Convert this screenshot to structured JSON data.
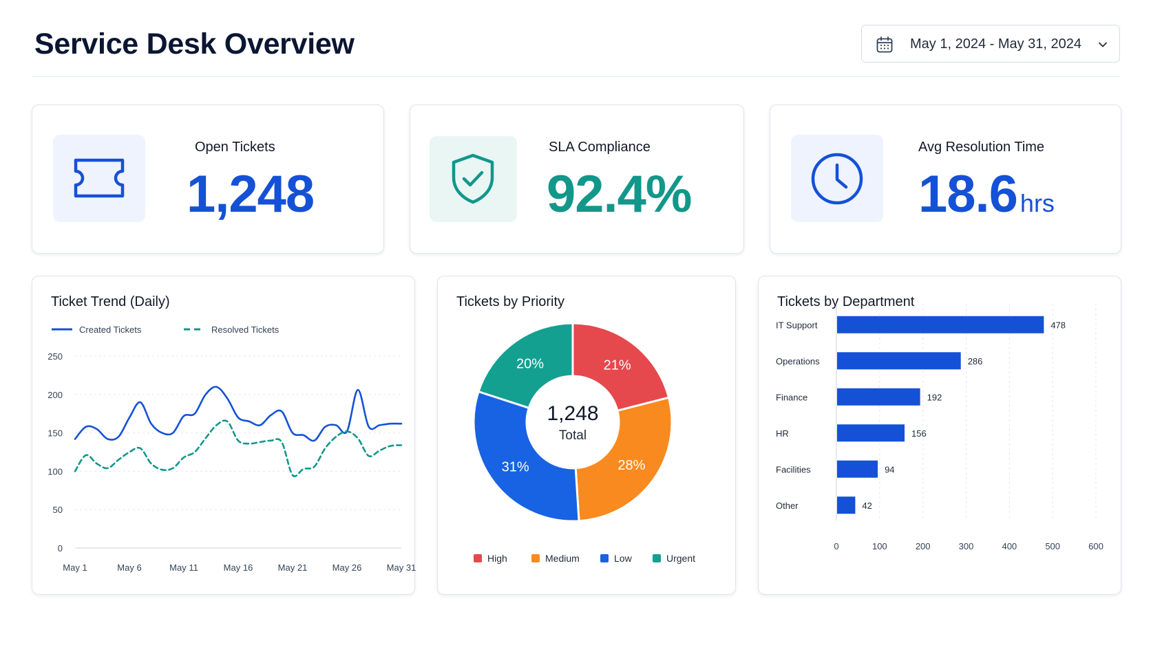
{
  "header": {
    "title": "Service Desk Overview",
    "date_range": "May 1, 2024 - May 31, 2024"
  },
  "icons": {
    "calendar": "calendar-icon",
    "dropdown": "chevron-down-icon",
    "ticket": "ticket-icon",
    "sla": "shield-check-icon",
    "resolution": "clock-icon"
  },
  "colors": {
    "blue": "#1551d6",
    "teal": "#12978a",
    "red": "#e5484d",
    "orange": "#f98a1f",
    "low_blue": "#1763e3",
    "urgent_teal": "#13a090"
  },
  "kpis": {
    "open_tickets": {
      "label": "Open Tickets",
      "value": "1,248"
    },
    "sla_compliance": {
      "label": "SLA Compliance",
      "value": "92.4%"
    },
    "avg_resolution": {
      "label": "Avg Resolution Time",
      "value": "18.6",
      "unit": "hrs"
    }
  },
  "trend_panel": {
    "title": "Ticket Trend (Daily)"
  },
  "priority_panel": {
    "title": "Tickets by Priority"
  },
  "department_panel": {
    "title": "Tickets by Department"
  },
  "chart_data": [
    {
      "type": "line",
      "title": "Ticket Trend (Daily)",
      "x": [
        "May 1",
        "May 2",
        "May 3",
        "May 4",
        "May 5",
        "May 6",
        "May 7",
        "May 8",
        "May 9",
        "May 10",
        "May 11",
        "May 12",
        "May 13",
        "May 14",
        "May 15",
        "May 16",
        "May 17",
        "May 18",
        "May 19",
        "May 20",
        "May 21",
        "May 22",
        "May 23",
        "May 24",
        "May 25",
        "May 26",
        "May 27",
        "May 28",
        "May 29",
        "May 30",
        "May 31"
      ],
      "x_ticks": [
        "May 1",
        "May 6",
        "May 11",
        "May 16",
        "May 21",
        "May 26",
        "May 31"
      ],
      "ylim": [
        0,
        250
      ],
      "y_ticks": [
        0,
        50,
        100,
        150,
        200,
        250
      ],
      "grid": true,
      "legend": "top-left",
      "series": [
        {
          "name": "Created Tickets",
          "style": "solid",
          "color": "#1551d6",
          "values": [
            142,
            158,
            155,
            142,
            145,
            170,
            190,
            162,
            150,
            150,
            172,
            175,
            200,
            210,
            195,
            170,
            165,
            160,
            173,
            178,
            150,
            147,
            140,
            158,
            160,
            152,
            206,
            158,
            160,
            162,
            162
          ]
        },
        {
          "name": "Resolved Tickets",
          "style": "dashed",
          "color": "#12978a",
          "values": [
            100,
            121,
            110,
            104,
            115,
            125,
            130,
            110,
            102,
            104,
            118,
            125,
            143,
            160,
            165,
            140,
            136,
            138,
            140,
            138,
            95,
            103,
            106,
            130,
            145,
            152,
            143,
            120,
            127,
            133,
            134
          ]
        }
      ]
    },
    {
      "type": "pie",
      "title": "Tickets by Priority",
      "center_value": "1,248",
      "center_label": "Total",
      "legend": "bottom",
      "slices": [
        {
          "name": "High",
          "value": 21,
          "label": "21%",
          "color": "#e5484d"
        },
        {
          "name": "Medium",
          "value": 28,
          "label": "28%",
          "color": "#f98a1f"
        },
        {
          "name": "Low",
          "value": 31,
          "label": "31%",
          "color": "#1763e3"
        },
        {
          "name": "Urgent",
          "value": 20,
          "label": "20%",
          "color": "#13a090"
        }
      ]
    },
    {
      "type": "bar",
      "orientation": "horizontal",
      "title": "Tickets by Department",
      "categories": [
        "IT Support",
        "Operations",
        "Finance",
        "HR",
        "Facilities",
        "Other"
      ],
      "values": [
        478,
        286,
        192,
        156,
        94,
        42
      ],
      "xlim": [
        0,
        600
      ],
      "x_ticks": [
        0,
        100,
        200,
        300,
        400,
        500,
        600
      ],
      "grid": true,
      "color": "#1551d6"
    }
  ]
}
